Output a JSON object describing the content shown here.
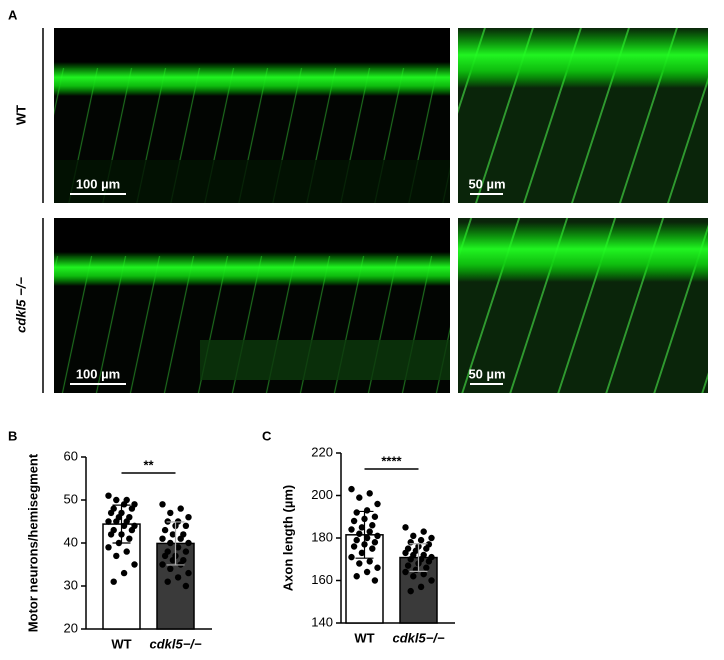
{
  "panel_a": {
    "letter": "A",
    "row_labels": [
      "WT",
      "cdkl5 −/−"
    ],
    "scale_bars": [
      "100 µm",
      "50 µm",
      "100 µm",
      "50 µm"
    ]
  },
  "chart_data": [
    {
      "type": "bar",
      "panel": "B",
      "ylabel": "Motor neurons/hemisegment",
      "categories": [
        "WT",
        "cdkl5−/−"
      ],
      "values": [
        44.4,
        39.9
      ],
      "errors": [
        4.4,
        5.0
      ],
      "colors": [
        "#ffffff",
        "#3a3a3a"
      ],
      "significance": "**",
      "points": [
        [
          51,
          50,
          50,
          49,
          49,
          48,
          48,
          47,
          47,
          46,
          46,
          45,
          45,
          45,
          44,
          44,
          43,
          43,
          42,
          42,
          41,
          40,
          39,
          38,
          37,
          35,
          33,
          31
        ],
        [
          49,
          48,
          47,
          46,
          45,
          45,
          44,
          44,
          43,
          42,
          42,
          41,
          41,
          40,
          40,
          39,
          38,
          38,
          37,
          37,
          36,
          36,
          35,
          35,
          34,
          33,
          32,
          31,
          30
        ]
      ],
      "ylim": [
        20,
        60
      ],
      "yticks": [
        20,
        30,
        40,
        50,
        60
      ]
    },
    {
      "type": "bar",
      "panel": "C",
      "ylabel": "Axon length (µm)",
      "categories": [
        "WT",
        "cdkl5−/−"
      ],
      "values": [
        181.5,
        170.8
      ],
      "errors": [
        11.0,
        6.5
      ],
      "colors": [
        "#ffffff",
        "#3a3a3a"
      ],
      "significance": "****",
      "points": [
        [
          203,
          201,
          199,
          196,
          193,
          192,
          190,
          189,
          188,
          186,
          185,
          184,
          183,
          182,
          181,
          180,
          179,
          178,
          177,
          176,
          175,
          173,
          171,
          169,
          168,
          166,
          164,
          162,
          160
        ],
        [
          185,
          183,
          181,
          180,
          179,
          178,
          177,
          176,
          175,
          175,
          174,
          173,
          172,
          172,
          171,
          170,
          170,
          169,
          168,
          167,
          166,
          165,
          164,
          163,
          162,
          160,
          157,
          155
        ]
      ],
      "ylim": [
        140,
        220
      ],
      "yticks": [
        140,
        160,
        180,
        200,
        220
      ]
    }
  ]
}
